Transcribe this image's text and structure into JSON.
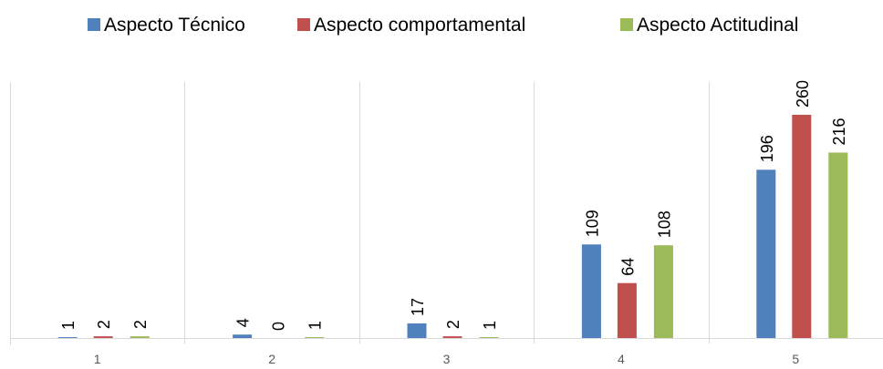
{
  "chart_data": {
    "type": "bar",
    "categories": [
      "1",
      "2",
      "3",
      "4",
      "5"
    ],
    "series": [
      {
        "name": "Aspecto Técnico",
        "color": "#4f81bd",
        "values": [
          1,
          4,
          17,
          109,
          196
        ]
      },
      {
        "name": "Aspecto comportamental",
        "color": "#c0504d",
        "values": [
          2,
          0,
          2,
          64,
          260
        ]
      },
      {
        "name": "Aspecto Actitudinal",
        "color": "#9bbb59",
        "values": [
          2,
          1,
          1,
          108,
          216
        ]
      }
    ],
    "title": "",
    "xlabel": "",
    "ylabel": "",
    "ylim": [
      0,
      300
    ],
    "grid": "vertical category separators",
    "legend_position": "top",
    "data_labels": "rotated vertical above bars"
  }
}
